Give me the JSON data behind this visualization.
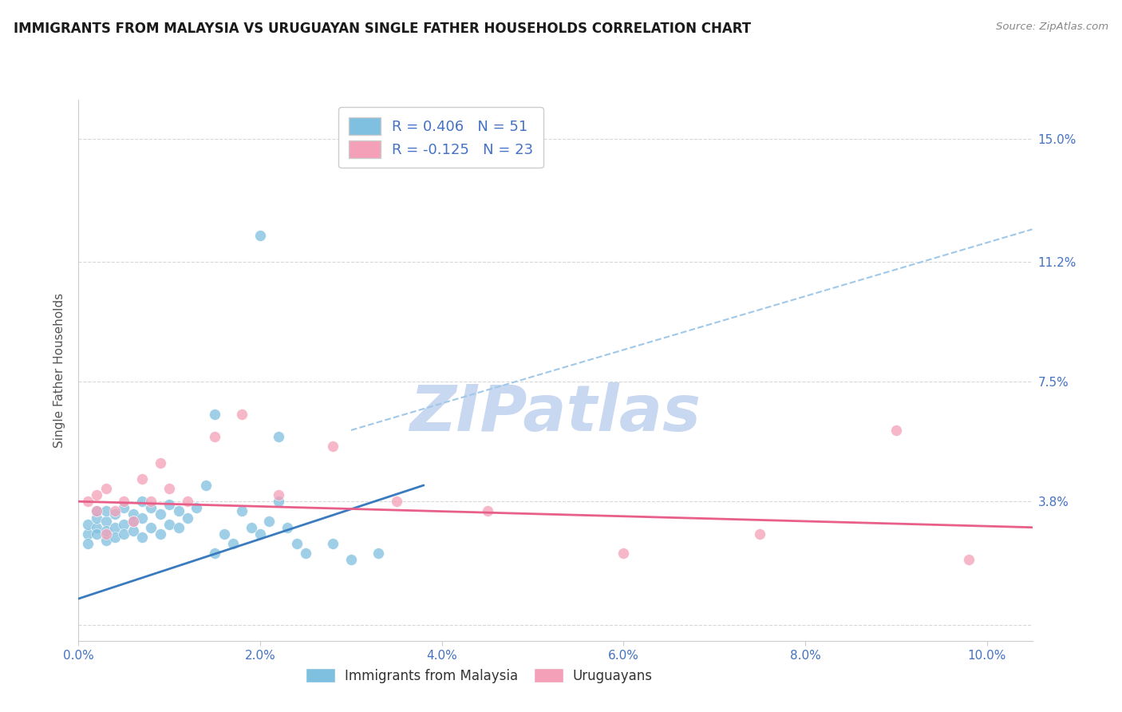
{
  "title": "IMMIGRANTS FROM MALAYSIA VS URUGUAYAN SINGLE FATHER HOUSEHOLDS CORRELATION CHART",
  "source": "Source: ZipAtlas.com",
  "ylabel": "Single Father Households",
  "y_tick_positions": [
    0.0,
    0.038,
    0.075,
    0.112,
    0.15
  ],
  "y_tick_labels": [
    "",
    "3.8%",
    "7.5%",
    "11.2%",
    "15.0%"
  ],
  "x_tick_positions": [
    0.0,
    0.02,
    0.04,
    0.06,
    0.08,
    0.1
  ],
  "x_tick_labels": [
    "0.0%",
    "2.0%",
    "4.0%",
    "6.0%",
    "8.0%",
    "10.0%"
  ],
  "x_min": 0.0,
  "x_max": 0.105,
  "y_min": -0.005,
  "y_max": 0.162,
  "legend_r1": "R = 0.406",
  "legend_n1": "N = 51",
  "legend_r2": "R = -0.125",
  "legend_n2": "N = 23",
  "legend_label1": "Immigrants from Malaysia",
  "legend_label2": "Uruguayans",
  "blue_color": "#7fbfdf",
  "pink_color": "#f4a0b8",
  "blue_line_color": "#3a7bbf",
  "pink_line_color": "#e8608a",
  "dashed_line_color": "#a0c8e8",
  "title_color": "#1a1a1a",
  "axis_label_color": "#4472C4",
  "watermark_color": "#c8d8f0",
  "grid_color": "#d8d8d8",
  "blue_scatter_x": [
    0.001,
    0.001,
    0.001,
    0.002,
    0.002,
    0.002,
    0.002,
    0.003,
    0.003,
    0.003,
    0.003,
    0.004,
    0.004,
    0.004,
    0.005,
    0.005,
    0.005,
    0.006,
    0.006,
    0.006,
    0.007,
    0.007,
    0.007,
    0.008,
    0.008,
    0.009,
    0.009,
    0.01,
    0.01,
    0.011,
    0.011,
    0.012,
    0.013,
    0.014,
    0.015,
    0.016,
    0.017,
    0.018,
    0.019,
    0.02,
    0.021,
    0.022,
    0.023,
    0.024,
    0.025,
    0.028,
    0.03,
    0.033,
    0.02,
    0.015,
    0.022
  ],
  "blue_scatter_y": [
    0.028,
    0.031,
    0.025,
    0.03,
    0.028,
    0.033,
    0.035,
    0.026,
    0.032,
    0.029,
    0.035,
    0.03,
    0.034,
    0.027,
    0.031,
    0.036,
    0.028,
    0.029,
    0.034,
    0.032,
    0.027,
    0.033,
    0.038,
    0.03,
    0.036,
    0.028,
    0.034,
    0.031,
    0.037,
    0.03,
    0.035,
    0.033,
    0.036,
    0.043,
    0.022,
    0.028,
    0.025,
    0.035,
    0.03,
    0.028,
    0.032,
    0.038,
    0.03,
    0.025,
    0.022,
    0.025,
    0.02,
    0.022,
    0.12,
    0.065,
    0.058
  ],
  "pink_scatter_x": [
    0.001,
    0.002,
    0.002,
    0.003,
    0.003,
    0.004,
    0.005,
    0.006,
    0.007,
    0.008,
    0.009,
    0.01,
    0.012,
    0.015,
    0.018,
    0.022,
    0.028,
    0.035,
    0.045,
    0.06,
    0.075,
    0.09,
    0.098
  ],
  "pink_scatter_y": [
    0.038,
    0.04,
    0.035,
    0.028,
    0.042,
    0.035,
    0.038,
    0.032,
    0.045,
    0.038,
    0.05,
    0.042,
    0.038,
    0.058,
    0.065,
    0.04,
    0.055,
    0.038,
    0.035,
    0.022,
    0.028,
    0.06,
    0.02
  ],
  "blue_solid_line_x": [
    0.0,
    0.038
  ],
  "blue_solid_line_y": [
    0.008,
    0.043
  ],
  "blue_dashed_line_x": [
    0.03,
    0.105
  ],
  "blue_dashed_line_y": [
    0.06,
    0.122
  ],
  "pink_line_x": [
    0.0,
    0.105
  ],
  "pink_line_y": [
    0.038,
    0.03
  ]
}
